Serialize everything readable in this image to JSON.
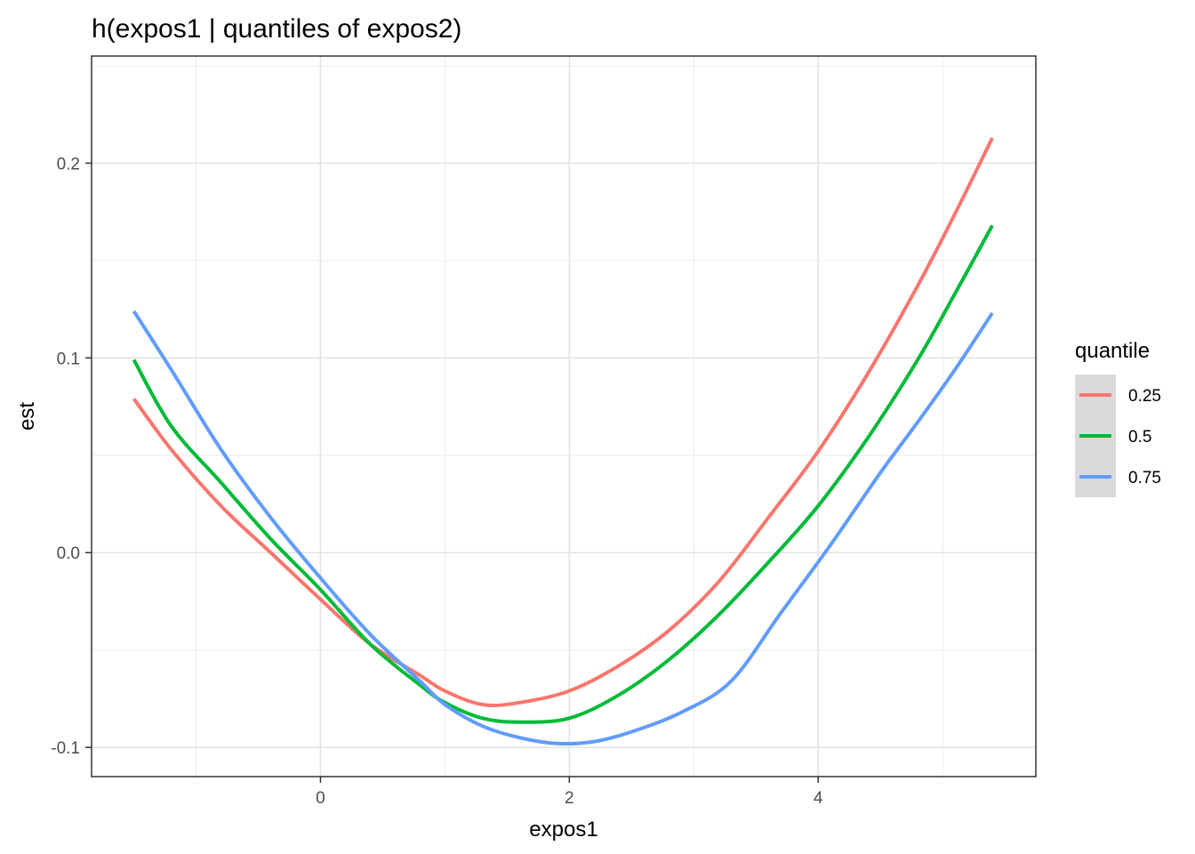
{
  "chart_data": {
    "type": "line",
    "title": "h(expos1 | quantiles of expos2)",
    "xlabel": "expos1",
    "ylabel": "est",
    "xlim": [
      -1.84,
      5.75
    ],
    "ylim": [
      -0.115,
      0.255
    ],
    "x_ticks": [
      0,
      2,
      4
    ],
    "x_tick_labels": [
      "0",
      "2",
      "4"
    ],
    "y_ticks": [
      -0.1,
      0.0,
      0.1,
      0.2
    ],
    "y_tick_labels": [
      "-0.1",
      "0.0",
      "0.1",
      "0.2"
    ],
    "grid": true,
    "legend": {
      "title": "quantile",
      "position": "right"
    },
    "series": [
      {
        "name": "0.25",
        "color": "#F8766D",
        "x": [
          -1.5,
          -1.2,
          -0.8,
          -0.4,
          0.0,
          0.4,
          0.8,
          1.0,
          1.3,
          1.6,
          2.0,
          2.4,
          2.8,
          3.2,
          3.6,
          4.0,
          4.4,
          4.8,
          5.1,
          5.4
        ],
        "y": [
          0.079,
          0.053,
          0.024,
          0.0,
          -0.024,
          -0.047,
          -0.063,
          -0.071,
          -0.078,
          -0.077,
          -0.071,
          -0.058,
          -0.04,
          -0.015,
          0.018,
          0.052,
          0.092,
          0.137,
          0.174,
          0.213
        ]
      },
      {
        "name": "0.5",
        "color": "#00BA38",
        "x": [
          -1.5,
          -1.2,
          -0.8,
          -0.4,
          0.0,
          0.4,
          0.8,
          1.0,
          1.3,
          1.6,
          2.0,
          2.4,
          2.8,
          3.2,
          3.6,
          4.0,
          4.4,
          4.8,
          5.1,
          5.4
        ],
        "y": [
          0.099,
          0.065,
          0.036,
          0.007,
          -0.019,
          -0.047,
          -0.068,
          -0.077,
          -0.085,
          -0.087,
          -0.085,
          -0.073,
          -0.055,
          -0.032,
          -0.005,
          0.024,
          0.059,
          0.099,
          0.133,
          0.168
        ]
      },
      {
        "name": "0.75",
        "color": "#619CFF",
        "x": [
          -1.5,
          -1.2,
          -0.8,
          -0.4,
          0.0,
          0.4,
          0.8,
          1.0,
          1.3,
          1.6,
          1.9,
          2.2,
          2.5,
          2.9,
          3.3,
          3.7,
          4.1,
          4.5,
          4.8,
          5.1,
          5.4
        ],
        "y": [
          0.124,
          0.094,
          0.053,
          0.018,
          -0.013,
          -0.042,
          -0.066,
          -0.078,
          -0.089,
          -0.095,
          -0.098,
          -0.097,
          -0.092,
          -0.082,
          -0.066,
          -0.031,
          0.004,
          0.041,
          0.067,
          0.094,
          0.123
        ]
      }
    ]
  }
}
